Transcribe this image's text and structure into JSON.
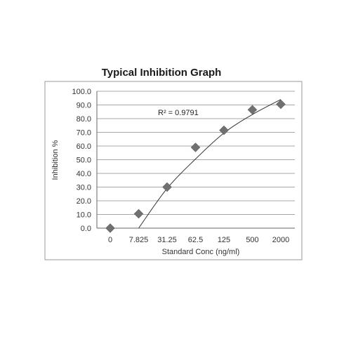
{
  "chart_data": {
    "type": "scatter",
    "title": "Typical Inhibition Graph",
    "xlabel": "Standard Conc (ng/ml)",
    "ylabel": "Inhibition %",
    "x_scale": "categorical",
    "categories": [
      "0",
      "7.825",
      "31.25",
      "62.5",
      "125",
      "500",
      "2000"
    ],
    "values": [
      0.0,
      10.5,
      30.0,
      59.0,
      71.5,
      86.5,
      90.5
    ],
    "ylim": [
      0,
      100
    ],
    "y_ticks": [
      "0.0",
      "10.0",
      "20.0",
      "30.0",
      "40.0",
      "50.0",
      "60.0",
      "70.0",
      "80.0",
      "90.0",
      "100.0"
    ],
    "grid": "horizontal",
    "legend": "none",
    "marker": "diamond",
    "marker_color": "#707070",
    "trendline": {
      "type": "polynomial",
      "color": "#333333",
      "points": [
        {
          "x": "7.825",
          "y": 0.0
        },
        {
          "x": "31.25",
          "y": 29.0
        },
        {
          "x": "62.5",
          "y": 50.5
        },
        {
          "x": "125",
          "y": 69.5
        },
        {
          "x": "500",
          "y": 83.0
        },
        {
          "x": "2000",
          "y": 94.0
        }
      ]
    },
    "annotations": [
      {
        "text": "R² = 0.9791"
      }
    ]
  }
}
